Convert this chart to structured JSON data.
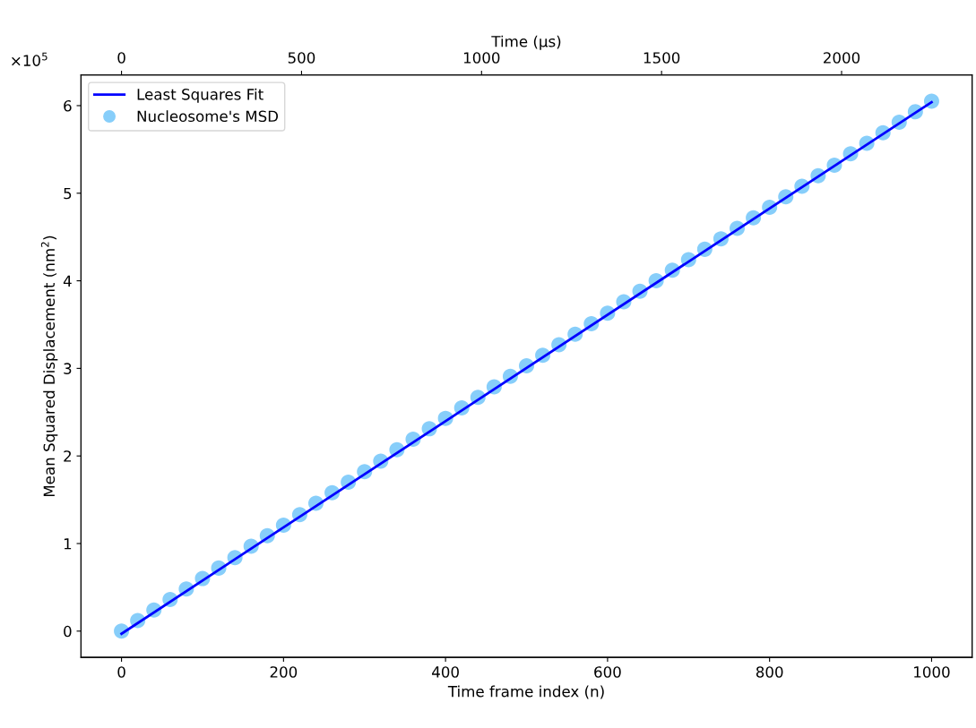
{
  "chart_data": {
    "type": "scatter",
    "xlabel": "Time frame index (n)",
    "ylabel": "Mean Squared Displacement (nm$^{2}$)",
    "x2label": "Time (μs)",
    "xlim": [
      -50,
      1050
    ],
    "xticks": [
      0,
      200,
      400,
      600,
      800,
      1000
    ],
    "x2lim": [
      -112.5,
      2362.5
    ],
    "x2ticks": [
      0,
      500,
      1000,
      1500,
      2000
    ],
    "ylim": [
      -0.3,
      6.35
    ],
    "yticks": [
      0,
      1,
      2,
      3,
      4,
      5,
      6
    ],
    "annotations": [
      "×10$^{5}$"
    ],
    "legend": "top left",
    "series": [
      {
        "name": "Least Squares Fit",
        "type": "line",
        "color": "#0000ff",
        "x": [
          0,
          1000
        ],
        "values": [
          -0.03,
          6.04
        ]
      },
      {
        "name": "Nucleosome's MSD",
        "color": "#87cefa",
        "marker": "circle",
        "x": [
          0,
          20,
          40,
          60,
          80,
          100,
          120,
          140,
          160,
          180,
          200,
          220,
          240,
          260,
          280,
          300,
          320,
          340,
          360,
          380,
          400,
          420,
          440,
          460,
          480,
          500,
          520,
          540,
          560,
          580,
          600,
          620,
          640,
          660,
          680,
          700,
          720,
          740,
          760,
          780,
          800,
          820,
          840,
          860,
          880,
          900,
          920,
          940,
          960,
          980,
          1000
        ],
        "values": [
          0,
          0.12,
          0.24,
          0.36,
          0.48,
          0.6,
          0.72,
          0.84,
          0.97,
          1.09,
          1.21,
          1.33,
          1.46,
          1.58,
          1.7,
          1.82,
          1.94,
          2.07,
          2.19,
          2.31,
          2.43,
          2.55,
          2.67,
          2.79,
          2.91,
          3.03,
          3.15,
          3.27,
          3.39,
          3.51,
          3.63,
          3.76,
          3.88,
          4.0,
          4.12,
          4.24,
          4.36,
          4.48,
          4.6,
          4.72,
          4.84,
          4.96,
          5.08,
          5.2,
          5.32,
          5.45,
          5.57,
          5.69,
          5.81,
          5.93,
          6.05
        ]
      }
    ]
  }
}
